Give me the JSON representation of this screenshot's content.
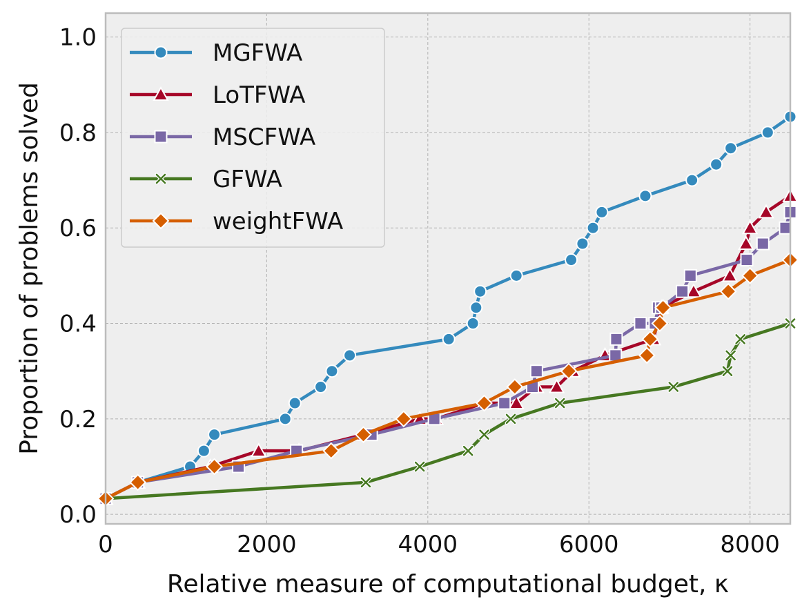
{
  "chart_data": {
    "type": "line",
    "title": "",
    "xlabel": "Relative measure of computational budget, κ",
    "ylabel": "Proportion of problems solved",
    "xlim": [
      0,
      8500
    ],
    "ylim": [
      -0.02,
      1.05
    ],
    "xticks": [
      0,
      2000,
      4000,
      6000,
      8000
    ],
    "xtick_labels": [
      "0",
      "2000",
      "4000",
      "6000",
      "8000"
    ],
    "yticks": [
      0.0,
      0.2,
      0.4,
      0.6,
      0.8,
      1.0
    ],
    "ytick_labels": [
      "0.0",
      "0.2",
      "0.4",
      "0.6",
      "0.8",
      "1.0"
    ],
    "grid": true,
    "legend_position": "upper-left",
    "series": [
      {
        "name": "MGFWA",
        "color": "#348ABD",
        "marker": "circle",
        "x": [
          0,
          400,
          1050,
          1220,
          1350,
          2230,
          2350,
          2670,
          2810,
          3030,
          4260,
          4560,
          4600,
          4650,
          5100,
          5780,
          5920,
          6050,
          6160,
          6700,
          7280,
          7580,
          7760,
          8220,
          8500
        ],
        "y": [
          0.033,
          0.067,
          0.1,
          0.133,
          0.167,
          0.2,
          0.233,
          0.267,
          0.3,
          0.333,
          0.367,
          0.4,
          0.433,
          0.467,
          0.5,
          0.533,
          0.567,
          0.6,
          0.633,
          0.667,
          0.7,
          0.733,
          0.767,
          0.8,
          0.833
        ]
      },
      {
        "name": "LoTFWA",
        "color": "#A60628",
        "marker": "triangle",
        "x": [
          0,
          400,
          1300,
          1900,
          2400,
          3200,
          3900,
          4100,
          4700,
          5100,
          5350,
          5600,
          5800,
          6200,
          6800,
          6900,
          7300,
          7750,
          7950,
          8000,
          8200,
          8500
        ],
        "y": [
          0.033,
          0.067,
          0.1,
          0.133,
          0.133,
          0.167,
          0.2,
          0.2,
          0.233,
          0.233,
          0.267,
          0.267,
          0.3,
          0.333,
          0.367,
          0.433,
          0.467,
          0.5,
          0.567,
          0.6,
          0.633,
          0.667
        ]
      },
      {
        "name": "MSCFWA",
        "color": "#7A68A6",
        "marker": "square",
        "x": [
          0,
          400,
          1650,
          2370,
          3300,
          4080,
          4950,
          5300,
          5350,
          6330,
          6340,
          6640,
          6820,
          6860,
          6900,
          7160,
          7260,
          7960,
          8160,
          8440,
          8500
        ],
        "y": [
          0.033,
          0.067,
          0.1,
          0.133,
          0.167,
          0.2,
          0.233,
          0.267,
          0.3,
          0.333,
          0.367,
          0.4,
          0.4,
          0.433,
          0.433,
          0.467,
          0.5,
          0.533,
          0.567,
          0.6,
          0.633
        ]
      },
      {
        "name": "GFWA",
        "color": "#467821",
        "marker": "x",
        "x": [
          0,
          3230,
          3900,
          4500,
          4700,
          5030,
          5640,
          7050,
          7720,
          7760,
          7880,
          8500
        ],
        "y": [
          0.033,
          0.067,
          0.1,
          0.133,
          0.167,
          0.2,
          0.233,
          0.267,
          0.3,
          0.333,
          0.367,
          0.4
        ]
      },
      {
        "name": "weightFWA",
        "color": "#D55E00",
        "marker": "diamond",
        "x": [
          0,
          400,
          1350,
          2800,
          3200,
          3700,
          4700,
          5080,
          5750,
          6720,
          6760,
          6880,
          6920,
          7730,
          8000,
          8500
        ],
        "y": [
          0.033,
          0.067,
          0.1,
          0.133,
          0.167,
          0.2,
          0.233,
          0.267,
          0.3,
          0.333,
          0.367,
          0.4,
          0.433,
          0.467,
          0.5,
          0.533
        ]
      }
    ]
  }
}
